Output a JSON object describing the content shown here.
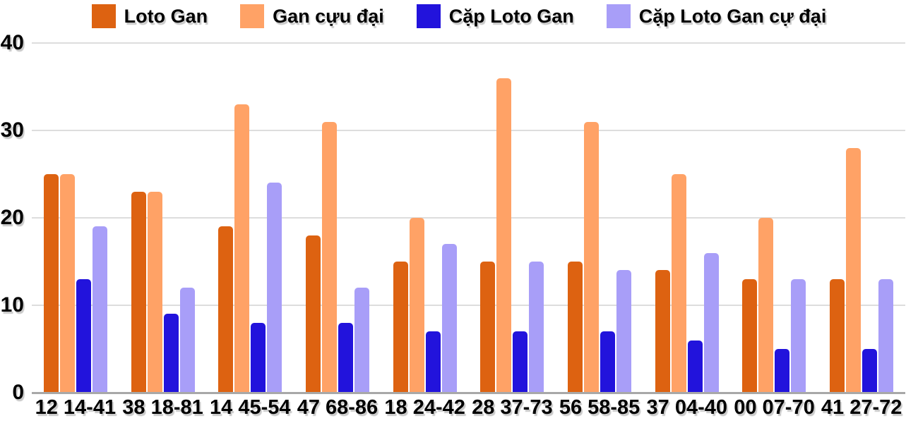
{
  "chart_data": {
    "type": "bar",
    "title": "",
    "xlabel": "",
    "ylabel": "",
    "ylim": [
      0,
      40
    ],
    "yticks": [
      0,
      10,
      20,
      30,
      40
    ],
    "grid": true,
    "legend_position": "top",
    "background_color": "#ffffff",
    "gridline_color": "#dddddd",
    "axis_line_color": "#a8a8a8",
    "categories": [
      "12 14-41",
      "38 18-81",
      "14 45-54",
      "47 68-86",
      "18 24-42",
      "28 37-73",
      "56 58-85",
      "37 04-40",
      "00 07-70",
      "41 27-72"
    ],
    "series": [
      {
        "name": "Loto Gan",
        "color": "#dd6211",
        "values": [
          25,
          23,
          19,
          18,
          15,
          15,
          15,
          14,
          13,
          13
        ]
      },
      {
        "name": "Gan cựu đại",
        "color": "#ffa266",
        "values": [
          25,
          23,
          33,
          31,
          20,
          36,
          31,
          25,
          20,
          28
        ]
      },
      {
        "name": "Cặp Loto Gan",
        "color": "#2213dc",
        "values": [
          13,
          9,
          8,
          8,
          7,
          7,
          7,
          6,
          5,
          5
        ]
      },
      {
        "name": "Cặp Loto Gan cự đại",
        "color": "#a89ef8",
        "values": [
          19,
          12,
          24,
          12,
          17,
          15,
          14,
          16,
          13,
          13
        ]
      }
    ]
  }
}
